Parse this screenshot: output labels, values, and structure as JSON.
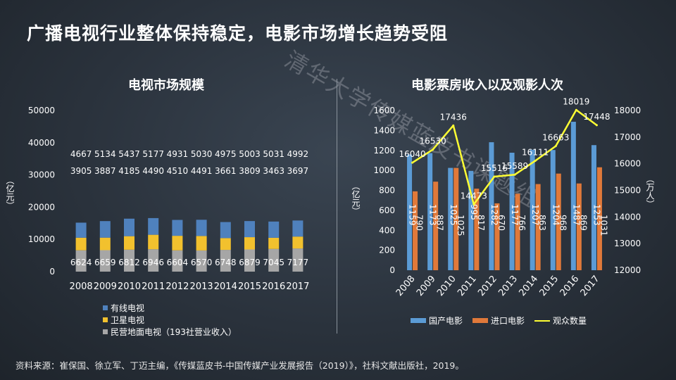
{
  "title": "广播电视行业整体保持稳定，电影市场增长趋势受阻",
  "watermark": "清华大学传媒蓝皮书课题组",
  "source": "资料来源：崔保国、徐立军、丁迈主编，《传媒蓝皮书-中国传媒产业发展报告（2019）》，社科文献出版社，2019。",
  "colors": {
    "blue": "#4f81bd",
    "yellow": "#f2c12e",
    "gray": "#a6a6a6",
    "orange": "#e0793a",
    "line": "#ffff33"
  },
  "chart_data": [
    {
      "type": "bar",
      "stacked": true,
      "title": "电视市场规模",
      "ylabel": "（亿元）",
      "ylim": [
        0,
        50000
      ],
      "yticks": [
        "0",
        "10000",
        "20000",
        "30000",
        "40000",
        "50000"
      ],
      "categories": [
        "2008",
        "2009",
        "2010",
        "2011",
        "2012",
        "2013",
        "2014",
        "2015",
        "2016",
        "2017"
      ],
      "series": [
        {
          "name": "民营地面电视（193社营业收入）",
          "color": "#a6a6a6",
          "values": [
            6624,
            6659,
            6812,
            6946,
            6604,
            6570,
            6748,
            6879,
            7045,
            7177
          ]
        },
        {
          "name": "卫星电视",
          "color": "#f2c12e",
          "values": [
            3905,
            3887,
            4185,
            4490,
            4510,
            4491,
            3661,
            3809,
            3463,
            3697
          ]
        },
        {
          "name": "有线电视",
          "color": "#4f81bd",
          "values": [
            4667,
            5134,
            5437,
            5177,
            4931,
            5030,
            4975,
            5003,
            5031,
            4992
          ]
        }
      ],
      "legend": [
        "有线电视",
        "卫星电视",
        "民营地面电视（193社营业收入）"
      ]
    },
    {
      "type": "bar",
      "title": "电影票房收入以及观影人次",
      "ylabel": "（亿元）",
      "y2label": "（万人）",
      "ylim": [
        0,
        1600
      ],
      "y2lim": [
        12000,
        18000
      ],
      "yticks": [
        "0",
        "200",
        "400",
        "600",
        "800",
        "1000",
        "1200",
        "1400",
        "1600"
      ],
      "y2ticks": [
        "12000",
        "13000",
        "14000",
        "15000",
        "16000",
        "17000",
        "18000"
      ],
      "categories": [
        "2008",
        "2009",
        "2010",
        "2011",
        "2012",
        "2013",
        "2014",
        "2015",
        "2016",
        "2017"
      ],
      "series": [
        {
          "name": "国产电影",
          "color": "#5b9bd5",
          "values": [
            1159,
            1173,
            1025,
            995,
            1282,
            1177,
            1207,
            1204,
            1487,
            1253
          ]
        },
        {
          "name": "进口电影",
          "color": "#e0793a",
          "values": [
            790,
            887,
            1025,
            817,
            670,
            766,
            863,
            968,
            869,
            1031
          ]
        },
        {
          "name": "观众数量",
          "type": "line",
          "axis": "right",
          "color": "#ffff33",
          "values": [
            16040,
            16530,
            17436,
            14473,
            15516,
            15589,
            16111,
            16663,
            18019,
            17448
          ]
        }
      ],
      "line_labels": [
        "16040",
        "16530",
        "17436",
        "14473",
        "15516",
        "15589",
        "16111",
        "16663",
        "18019",
        "17448"
      ],
      "legend": [
        "国产电影",
        "进口电影",
        "观众数量"
      ]
    }
  ]
}
